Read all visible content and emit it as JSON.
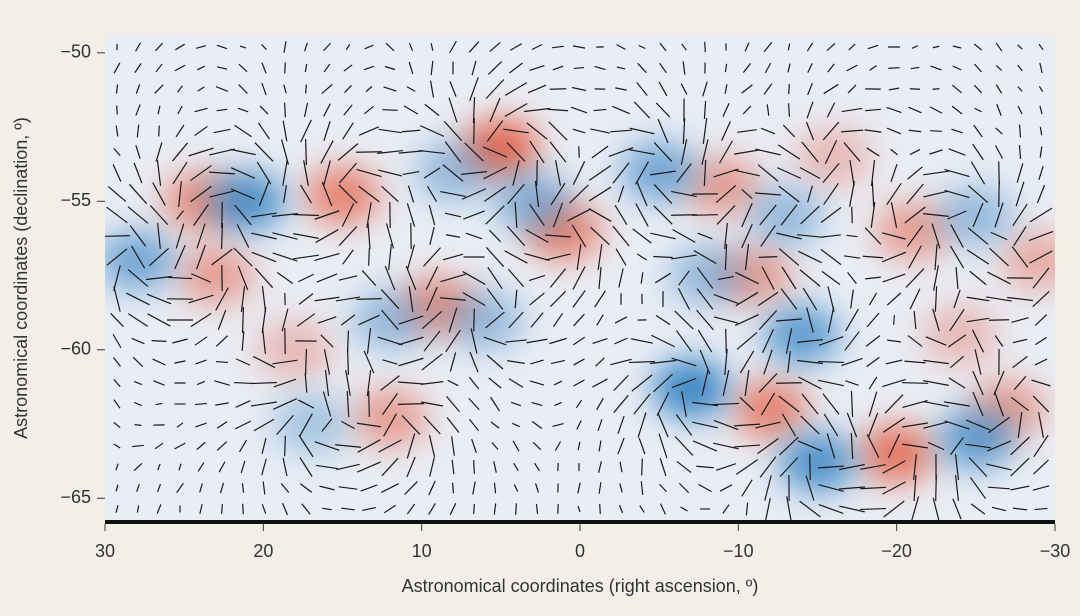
{
  "chart_data": {
    "type": "heatmap",
    "xlabel": "Astronomical coordinates (right ascension, º)",
    "ylabel": "Astronomical coordinates (declination, º)",
    "xlim": [
      30,
      -30
    ],
    "ylim": [
      -65.8,
      -49.4
    ],
    "xticks": [
      30,
      20,
      10,
      0,
      {
        "value": -10,
        "label": "−10"
      },
      {
        "value": -20,
        "label": "−20"
      },
      {
        "value": -30,
        "label": "−30"
      }
    ],
    "yticks": [
      {
        "value": -50,
        "label": "−50"
      },
      {
        "value": -55,
        "label": "−55"
      },
      {
        "value": -60,
        "label": "−60"
      },
      {
        "value": -65,
        "label": "−65"
      }
    ],
    "positive_color": "#e45a3f",
    "negative_color": "#2a7cc0",
    "x": [
      5,
      15,
      24,
      23,
      9,
      1,
      -20,
      -12,
      -11,
      -9,
      -21,
      -27,
      -29,
      12,
      18,
      -16,
      -24,
      21,
      28,
      -7,
      -14,
      -15,
      -25,
      3,
      -5,
      8,
      -8,
      6,
      -13,
      -25,
      17,
      12
    ],
    "y": [
      -53.2,
      -54.8,
      -55,
      -57.5,
      -58.5,
      -56,
      -63.5,
      -62,
      -57.5,
      -54.5,
      -56,
      -62,
      -57,
      -62.3,
      -60,
      -53.5,
      -59.5,
      -55,
      -57,
      -61.3,
      -59.5,
      -63.8,
      -63,
      -55,
      -54,
      -54,
      -57.5,
      -59,
      -55.5,
      -55.5,
      -62.5,
      -59
    ],
    "values": [
      1,
      0.8,
      0.7,
      0.6,
      0.7,
      0.8,
      0.9,
      0.8,
      0.6,
      0.6,
      0.6,
      0.6,
      0.5,
      0.6,
      0.4,
      0.4,
      0.4,
      -0.9,
      -0.7,
      -1,
      -0.8,
      -0.9,
      -0.8,
      -0.6,
      -0.7,
      -0.5,
      -0.5,
      -0.5,
      -0.5,
      -0.5,
      -0.4,
      -0.5
    ]
  }
}
